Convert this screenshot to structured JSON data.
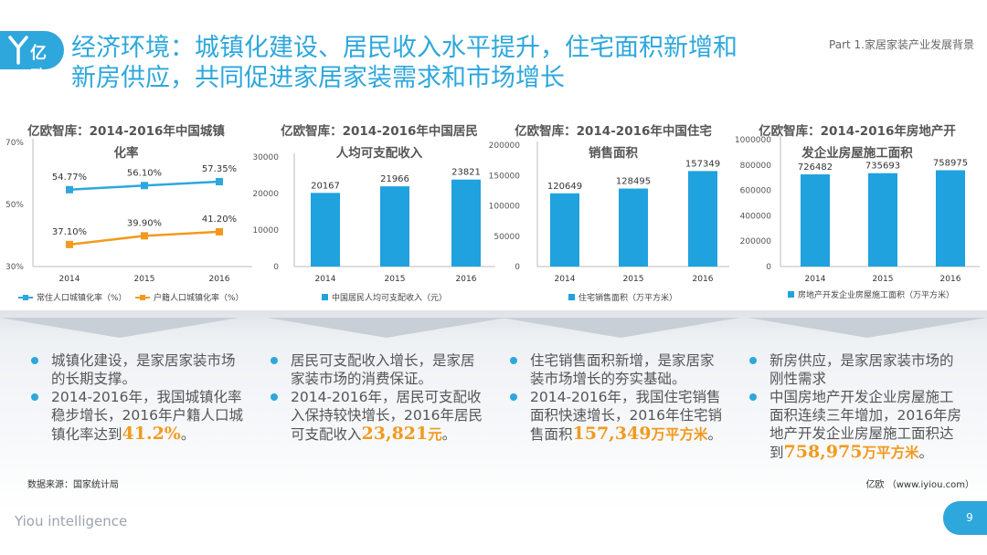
{
  "header": {
    "logo_text": "亿欧",
    "title_line1": "经济环境：城镇化建设、居民收入水平提升，住宅面积新增和",
    "title_line2": "新房供应，共同促进家居家装需求和市场增长",
    "part_label": "Part 1.家居家装产业发展背景"
  },
  "colors": {
    "accent": "#2ea7dd",
    "orange": "#f19a1e",
    "bar": "#1fa2de"
  },
  "chart_data": [
    {
      "type": "line",
      "title_line1": "亿欧智库：2014-2016年中国城镇",
      "title_line2": "化率",
      "categories": [
        "2014",
        "2015",
        "2016"
      ],
      "ylim": [
        30,
        70
      ],
      "yticks": [
        "70%",
        "50%",
        "30%"
      ],
      "series": [
        {
          "name": "常住人口城镇化率（%）",
          "values": [
            54.77,
            56.1,
            57.35
          ],
          "labels": [
            "54.77%",
            "56.10%",
            "57.35%"
          ],
          "color": "#2ea7dd"
        },
        {
          "name": "户籍人口城镇化率（%）",
          "values": [
            37.1,
            39.9,
            41.2
          ],
          "labels": [
            "37.10%",
            "39.90%",
            "41.20%"
          ],
          "color": "#f19a1e"
        }
      ]
    },
    {
      "type": "bar",
      "title_line1": "亿欧智库：2014-2016年中国居民",
      "title_line2": "人均可支配收入",
      "categories": [
        "2014",
        "2015",
        "2016"
      ],
      "ylim": [
        0,
        30000
      ],
      "yticks": [
        "30000",
        "20000",
        "10000",
        "0"
      ],
      "series": [
        {
          "name": "中国居民人均可支配收入（元）",
          "values": [
            20167,
            21966,
            23821
          ]
        }
      ]
    },
    {
      "type": "bar",
      "title_line1": "亿欧智库：2014-2016年中国住宅",
      "title_line2": "销售面积",
      "categories": [
        "2014",
        "2015",
        "2016"
      ],
      "ylim": [
        0,
        200000
      ],
      "yticks": [
        "200000",
        "150000",
        "100000",
        "50000",
        "0"
      ],
      "series": [
        {
          "name": "住宅销售面积（万平方米）",
          "values": [
            120649,
            128495,
            157349
          ]
        }
      ]
    },
    {
      "type": "bar",
      "title_line1": "亿欧智库：2014-2016年房地产开",
      "title_line2": "发企业房屋施工面积",
      "categories": [
        "2014",
        "2015",
        "2016"
      ],
      "ylim": [
        0,
        1000000
      ],
      "yticks": [
        "1000000",
        "800000",
        "600000",
        "400000",
        "200000",
        "0"
      ],
      "series": [
        {
          "name": "房地产开发企业房屋施工面积（万平方米）",
          "values": [
            726482,
            735693,
            758975
          ]
        }
      ]
    }
  ],
  "summary": [
    {
      "b1": "城镇化建设，是家居家装市场的长期支撑。",
      "b2": "2014-2016年，我国城镇化率稳步增长，2016年户籍人口城镇化率达到",
      "highlight": "41.2%",
      "unit": "",
      "end": "。"
    },
    {
      "b1": "居民可支配收入增长，是家居家装市场的消费保证。",
      "b2": "2014-2016年，居民可支配收入保持较快增长，2016年居民可支配收入",
      "highlight": "23,821",
      "unit": "元",
      "end": "。"
    },
    {
      "b1": "住宅销售面积新增，是家居家装市场增长的夯实基础。",
      "b2": "2014-2016年，我国住宅销售面积快速增长，2016年住宅销售面积",
      "highlight": "157,349",
      "unit": "万平方米",
      "end": "。"
    },
    {
      "b1": "新房供应，是家居家装市场的刚性需求",
      "b2": "中国房地产开发企业房屋施工面积连续三年增加，2016年房地产开发企业房屋施工面积达到",
      "highlight": "758,975",
      "unit": "万平方米",
      "end": "。"
    }
  ],
  "footer": {
    "source": "数据来源：国家统计局",
    "site": "亿欧 （www.iyiou.com）",
    "brand": "Yiou intelligence",
    "page": "9"
  }
}
